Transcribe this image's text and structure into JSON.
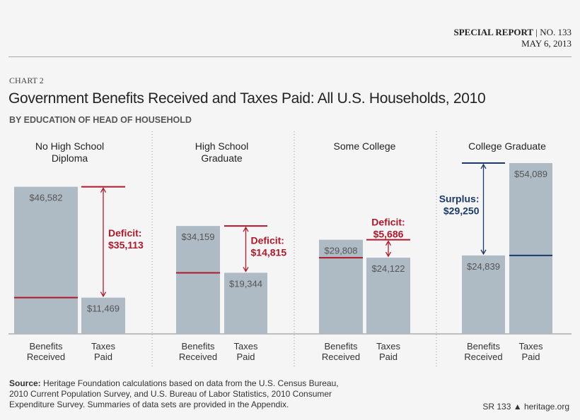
{
  "header": {
    "report": "SPECIAL REPORT",
    "number": "| NO. 133",
    "date": "MAY 6, 2013"
  },
  "chart_label": "CHART 2",
  "footer": {
    "source_label": "Source:",
    "source_text": " Heritage Foundation calculations based on data from the U.S. Census Bureau, 2010 Current Population Survey, and U.S. Bureau of Labor Statistics, 2010 Consumer Expenditure Survey. Summaries of data sets are provided in the Appendix.",
    "report_id": "SR 133",
    "site": "heritage.org"
  },
  "chart_data": {
    "type": "bar",
    "title": "Government Benefits Received and Taxes Paid: All U.S. Households, 2010",
    "subtitle": "BY EDUCATION OF HEAD OF HOUSEHOLD",
    "categories": [
      [
        "No High School",
        "Diploma"
      ],
      [
        "High School",
        "Graduate"
      ],
      [
        "Some College"
      ],
      [
        "College Graduate"
      ]
    ],
    "bar_labels": [
      [
        "Benefits",
        "Received"
      ],
      [
        "Taxes",
        "Paid"
      ]
    ],
    "series": [
      {
        "name": "Benefits Received",
        "values": [
          46582,
          34159,
          29808,
          24839
        ],
        "labels": [
          "$46,582",
          "$34,159",
          "$29,808",
          "$24,839"
        ]
      },
      {
        "name": "Taxes Paid",
        "values": [
          11469,
          19344,
          24122,
          54089
        ],
        "labels": [
          "$11,469",
          "$19,344",
          "$24,122",
          "$54,089"
        ]
      }
    ],
    "annotations": [
      {
        "type": "Deficit:",
        "value": "$35,113"
      },
      {
        "type": "Deficit:",
        "value": "$14,815"
      },
      {
        "type": "Deficit:",
        "value": "$5,686"
      },
      {
        "type": "Surplus:",
        "value": "$29,250"
      }
    ],
    "colors": {
      "bar": "#aebac4",
      "deficit": "#b0182a",
      "surplus": "#1b3a6b",
      "divider": "#999999"
    }
  }
}
